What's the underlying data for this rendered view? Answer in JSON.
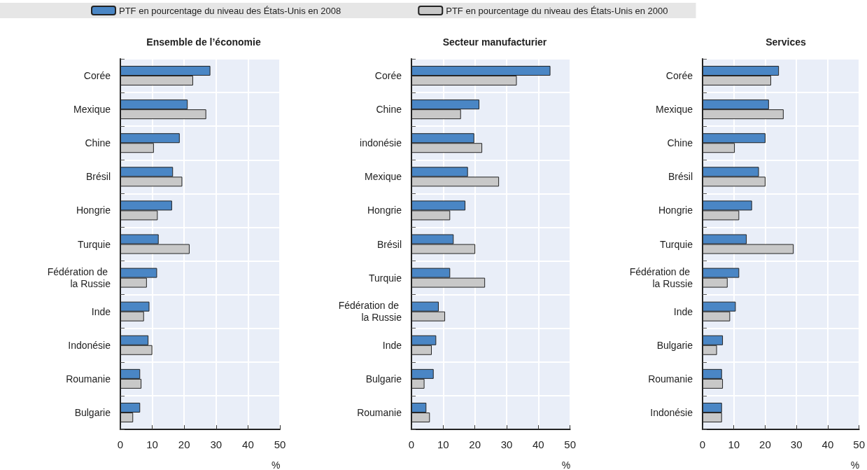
{
  "chart_data": [
    {
      "type": "bar",
      "orientation": "horizontal",
      "title": "Ensemble de l’économie",
      "xlabel": "%",
      "categories": [
        "Corée",
        "Mexique",
        "Chine",
        "Brésil",
        "Hongrie",
        "Turquie",
        "Fédération de la Russie",
        "Inde",
        "Indonésie",
        "Roumanie",
        "Bulgarie"
      ],
      "series": [
        {
          "name": "PTF en pourcentage du niveau des États-Unis en 2008",
          "color": "#4a86c5",
          "values": [
            28.2,
            21.1,
            18.6,
            16.5,
            16.2,
            12.0,
            11.5,
            9.1,
            8.8,
            6.2,
            6.2
          ]
        },
        {
          "name": "PTF en pourcentage du niveau des États-Unis en 2000",
          "color": "#c8c8c8",
          "values": [
            22.8,
            26.9,
            10.5,
            19.4,
            11.7,
            21.7,
            8.3,
            7.4,
            10.0,
            6.6,
            4.0
          ]
        }
      ],
      "xlim": [
        0,
        50
      ],
      "xticks": [
        0,
        10,
        20,
        30,
        40,
        50
      ],
      "grid": true,
      "legend": "top"
    },
    {
      "type": "bar",
      "orientation": "horizontal",
      "title": "Secteur manufacturier",
      "xlabel": "%",
      "categories": [
        "Corée",
        "Chine",
        "indonésie",
        "Mexique",
        "Hongrie",
        "Brésil",
        "Turquie",
        "Fédération de la Russie",
        "Inde",
        "Bulgarie",
        "Roumanie"
      ],
      "series": [
        {
          "color": "#4a86c5",
          "values": [
            43.8,
            21.4,
            19.8,
            17.8,
            17.0,
            13.3,
            12.2,
            8.6,
            7.8,
            7.0,
            4.7
          ]
        },
        {
          "color": "#c8c8c8",
          "values": [
            33.2,
            15.6,
            22.3,
            27.6,
            12.2,
            20.1,
            23.2,
            10.6,
            6.4,
            4.1,
            5.8
          ]
        }
      ],
      "xlim": [
        0,
        50
      ],
      "xticks": [
        0,
        10,
        20,
        30,
        40,
        50
      ],
      "grid": true
    },
    {
      "type": "bar",
      "orientation": "horizontal",
      "title": "Services",
      "xlabel": "%",
      "categories": [
        "Corée",
        "Mexique",
        "Chine",
        "Brésil",
        "Hongrie",
        "Turquie",
        "Fédération de la Russie",
        "Inde",
        "Bulgarie",
        "Roumanie",
        "Indonésie"
      ],
      "series": [
        {
          "color": "#4a86c5",
          "values": [
            24.4,
            21.2,
            20.1,
            18.0,
            15.8,
            14.1,
            11.7,
            10.6,
            6.5,
            6.2,
            6.2
          ]
        },
        {
          "color": "#c8c8c8",
          "values": [
            21.9,
            25.9,
            10.3,
            20.1,
            11.7,
            29.1,
            8.0,
            8.8,
            4.6,
            6.5,
            6.2
          ]
        }
      ],
      "xlim": [
        0,
        50
      ],
      "xticks": [
        0,
        10,
        20,
        30,
        40,
        50
      ],
      "grid": true
    }
  ]
}
